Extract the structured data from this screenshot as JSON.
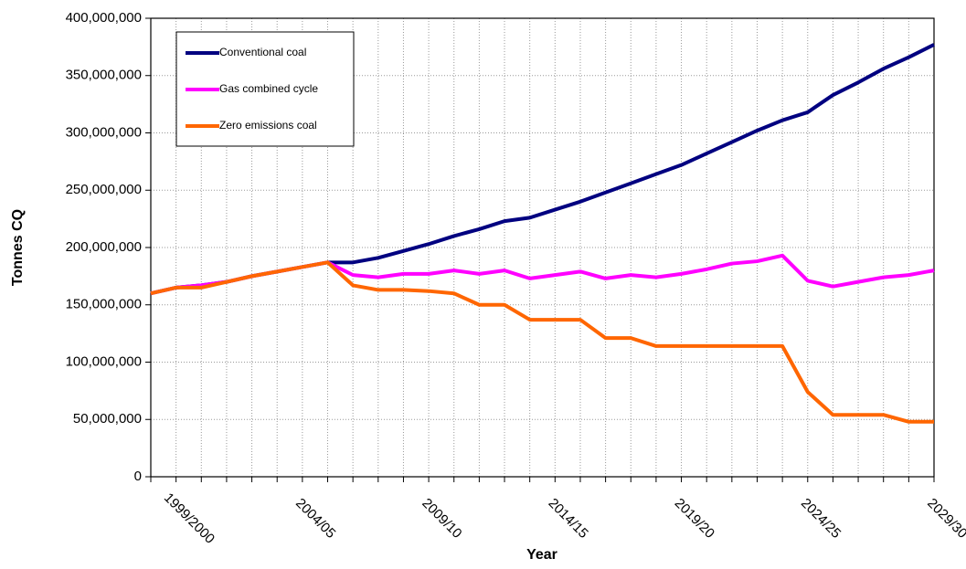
{
  "chart_data": {
    "type": "line",
    "x_label": "Year",
    "y_label": "Tonnes CQ",
    "categories": [
      null,
      "1999/2000",
      null,
      null,
      null,
      null,
      "2004/05",
      null,
      null,
      null,
      null,
      "2009/10",
      null,
      null,
      null,
      null,
      "2014/15",
      null,
      null,
      null,
      null,
      "2019/20",
      null,
      null,
      null,
      null,
      "2024/25",
      null,
      null,
      null,
      null,
      "2029/30"
    ],
    "series": [
      {
        "name": "Conventional coal",
        "color": "#000080",
        "values": [
          160000000,
          165000000,
          167000000,
          170000000,
          175000000,
          179000000,
          183000000,
          187000000,
          187000000,
          191000000,
          197000000,
          203000000,
          210000000,
          216000000,
          223000000,
          226000000,
          233000000,
          240000000,
          248000000,
          256000000,
          264000000,
          272000000,
          282000000,
          292000000,
          302000000,
          311000000,
          318000000,
          333000000,
          344000000,
          356000000,
          366000000,
          377000000
        ]
      },
      {
        "name": "Gas combined cycle",
        "color": "#ff00ff",
        "values": [
          160000000,
          165000000,
          167000000,
          170000000,
          175000000,
          179000000,
          183000000,
          187000000,
          176000000,
          174000000,
          177000000,
          177000000,
          180000000,
          177000000,
          180000000,
          173000000,
          176000000,
          179000000,
          173000000,
          176000000,
          174000000,
          177000000,
          181000000,
          186000000,
          188000000,
          193000000,
          171000000,
          166000000,
          170000000,
          174000000,
          176000000,
          180000000
        ]
      },
      {
        "name": "Zero emissions coal",
        "color": "#ff6600",
        "values": [
          160000000,
          165000000,
          165000000,
          170000000,
          175000000,
          179000000,
          183000000,
          187000000,
          167000000,
          163000000,
          163000000,
          162000000,
          160000000,
          150000000,
          150000000,
          137000000,
          137000000,
          137000000,
          121000000,
          121000000,
          114000000,
          114000000,
          114000000,
          114000000,
          114000000,
          114000000,
          74000000,
          54000000,
          54000000,
          54000000,
          48000000,
          48000000
        ]
      }
    ],
    "ylim": [
      0,
      400000000
    ],
    "yticks": [
      0,
      {
        "value": 50000000,
        "label": "50,000,000"
      },
      {
        "value": 100000000,
        "label": "100,000,000"
      },
      {
        "value": 150000000,
        "label": "150,000,000"
      },
      {
        "value": 200000000,
        "label": "200,000,000"
      },
      {
        "value": 250000000,
        "label": "250,000,000"
      },
      {
        "value": 300000000,
        "label": "300,000,000"
      },
      {
        "value": 350000000,
        "label": "350,000,000"
      },
      {
        "value": 400000000,
        "label": "400,000,000"
      }
    ],
    "grid": true
  }
}
